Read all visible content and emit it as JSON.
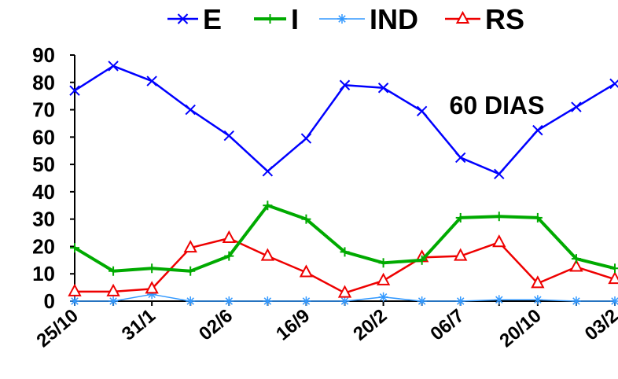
{
  "chart_data": {
    "type": "line",
    "annotation": "60 DIAS",
    "categories": [
      "25/10",
      "",
      "31/1",
      "",
      "02/6",
      "",
      "16/9",
      "",
      "20/2",
      "",
      "06/7",
      "",
      "20/10",
      "",
      "03/2"
    ],
    "series": [
      {
        "name": "E",
        "color": "#0000ff",
        "marker": "x",
        "values": [
          77,
          86,
          80.5,
          70,
          60.5,
          47.5,
          59.5,
          79,
          78,
          69.5,
          52.5,
          46.5,
          62.5,
          71,
          79.5
        ]
      },
      {
        "name": "I",
        "color": "#00aa00",
        "marker": "plus",
        "values": [
          19.5,
          11,
          12,
          11,
          16.5,
          35,
          30,
          18,
          14,
          15,
          30.5,
          31,
          30.5,
          15.5,
          12
        ]
      },
      {
        "name": "IND",
        "color": "#3399ff",
        "marker": "asterisk",
        "values": [
          0,
          0,
          2.5,
          0,
          0,
          0,
          0,
          0,
          1.5,
          0,
          0,
          0.5,
          0.5,
          0,
          0
        ]
      },
      {
        "name": "RS",
        "color": "#ee0000",
        "marker": "triangle",
        "values": [
          3.5,
          3.5,
          4.5,
          19.5,
          23,
          16.5,
          10.5,
          3,
          7.5,
          16,
          16.5,
          21.5,
          6.5,
          12.5,
          8
        ]
      }
    ],
    "yticks": [
      0,
      10,
      20,
      30,
      40,
      50,
      60,
      70,
      80,
      90
    ],
    "ylim": [
      0,
      90
    ],
    "grid": false,
    "legend_position": "top"
  }
}
